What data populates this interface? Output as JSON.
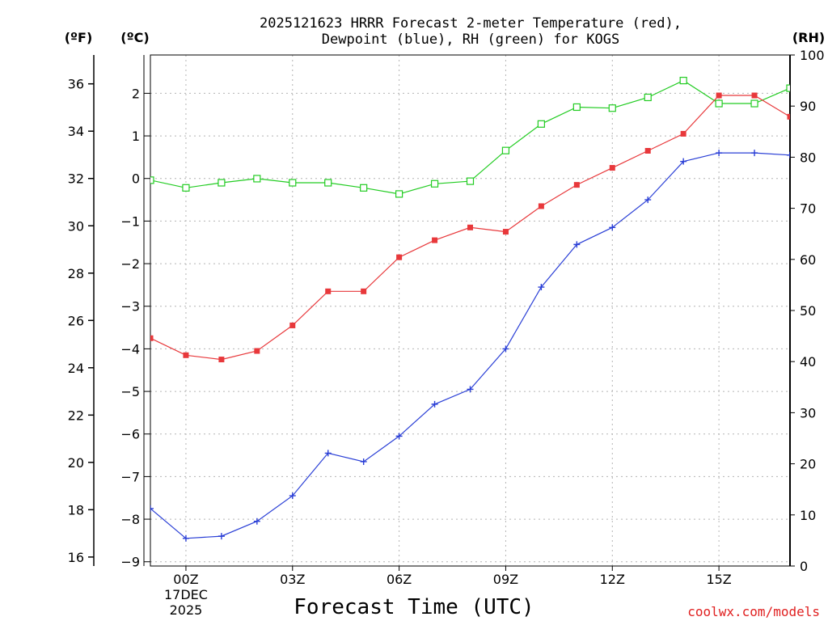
{
  "chart_data": {
    "type": "line",
    "title_lines": [
      "2025121623 HRRR Forecast 2-meter Temperature (red),",
      "Dewpoint (blue), RH (green) for KOGS"
    ],
    "xlabel": "Forecast Time (UTC)",
    "credit": "coolwx.com/models",
    "unit_labels": {
      "fahrenheit": "(ºF)",
      "celsius": "(ºC)",
      "rh": "(RH)"
    },
    "x_range": [
      -1,
      17
    ],
    "x_hours": [
      -1,
      0,
      1,
      2,
      3,
      4,
      5,
      6,
      7,
      8,
      9,
      10,
      11,
      12,
      13,
      14,
      15,
      16,
      17
    ],
    "x_ticks": [
      {
        "hour": 0,
        "lines": [
          "00Z",
          "17DEC",
          "2025"
        ]
      },
      {
        "hour": 3,
        "lines": [
          "03Z"
        ]
      },
      {
        "hour": 6,
        "lines": [
          "06Z"
        ]
      },
      {
        "hour": 9,
        "lines": [
          "09Z"
        ]
      },
      {
        "hour": 12,
        "lines": [
          "12Z"
        ]
      },
      {
        "hour": 15,
        "lines": [
          "15Z"
        ]
      }
    ],
    "celsius_axis": {
      "range": [
        -9.1,
        2.9
      ],
      "ticks": [
        -9,
        -8,
        -7,
        -6,
        -5,
        -4,
        -3,
        -2,
        -1,
        0,
        1,
        2
      ],
      "tick_labels": [
        "−9",
        "−8",
        "−7",
        "−6",
        "−5",
        "−4",
        "−3",
        "−2",
        "−1",
        "0",
        "1",
        "2"
      ]
    },
    "fahrenheit_axis": {
      "ticks": [
        16,
        18,
        20,
        22,
        24,
        26,
        28,
        30,
        32,
        34,
        36
      ],
      "tick_labels": [
        "16",
        "18",
        "20",
        "22",
        "24",
        "26",
        "28",
        "30",
        "32",
        "34",
        "36"
      ]
    },
    "rh_axis": {
      "range": [
        0,
        100
      ],
      "ticks": [
        0,
        10,
        20,
        30,
        40,
        50,
        60,
        70,
        80,
        90,
        100
      ],
      "tick_labels": [
        "0",
        "10",
        "20",
        "30",
        "40",
        "50",
        "60",
        "70",
        "80",
        "90",
        "100"
      ]
    },
    "series": [
      {
        "name": "2-meter Temperature",
        "units": "°C",
        "axis": "celsius",
        "color": "#e8383b",
        "marker": "filled-square",
        "values": [
          -3.75,
          -4.15,
          -4.25,
          -4.05,
          -3.45,
          -2.65,
          -2.65,
          -1.85,
          -1.45,
          -1.15,
          -1.25,
          -0.65,
          -0.15,
          0.25,
          0.65,
          1.05,
          1.95,
          1.95,
          1.45
        ]
      },
      {
        "name": "Dewpoint",
        "units": "°C",
        "axis": "celsius",
        "color": "#2a3fd6",
        "marker": "plus",
        "values": [
          -7.75,
          -8.45,
          -8.4,
          -8.05,
          -7.45,
          -6.45,
          -6.65,
          -6.05,
          -5.3,
          -4.95,
          -4.0,
          -2.55,
          -1.55,
          -1.15,
          -0.5,
          0.4,
          0.6,
          0.6,
          0.55
        ]
      },
      {
        "name": "RH",
        "units": "%",
        "axis": "rh",
        "color": "#22cc22",
        "marker": "open-square",
        "values": [
          75.5,
          74,
          75,
          75.8,
          75,
          75,
          74,
          72.8,
          74.8,
          75.3,
          81.3,
          86.5,
          89.8,
          89.6,
          91.7,
          95,
          90.5,
          90.5,
          93.5
        ]
      }
    ]
  }
}
